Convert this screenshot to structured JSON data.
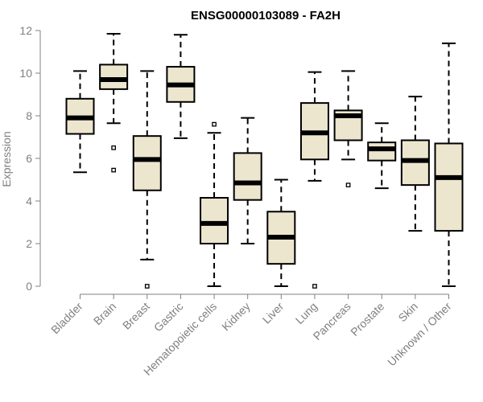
{
  "chart_data": {
    "type": "box",
    "title": "ENSG00000103089 - FA2H",
    "xlabel": "",
    "ylabel": "Expression",
    "ylim": [
      0,
      12
    ],
    "yticks": [
      0,
      2,
      4,
      6,
      8,
      10,
      12
    ],
    "box_color": "#ede6cf",
    "axis_color": "#808080",
    "categories": [
      "Bladder",
      "Brain",
      "Breast",
      "Gastric",
      "Hematopoietic cells",
      "Kidney",
      "Liver",
      "Lung",
      "Pancreas",
      "Prostate",
      "Skin",
      "Unknown / Other"
    ],
    "boxes": [
      {
        "category": "Bladder",
        "whisker_low": 5.35,
        "q1": 7.15,
        "median": 7.9,
        "q3": 8.8,
        "whisker_high": 10.1,
        "outliers": []
      },
      {
        "category": "Brain",
        "whisker_low": 7.65,
        "q1": 9.25,
        "median": 9.7,
        "q3": 10.4,
        "whisker_high": 11.85,
        "outliers": [
          6.5,
          5.45
        ]
      },
      {
        "category": "Breast",
        "whisker_low": 1.25,
        "q1": 4.5,
        "median": 5.95,
        "q3": 7.05,
        "whisker_high": 10.1,
        "outliers": [
          0.0
        ]
      },
      {
        "category": "Gastric",
        "whisker_low": 6.95,
        "q1": 8.65,
        "median": 9.45,
        "q3": 10.3,
        "whisker_high": 11.8,
        "outliers": []
      },
      {
        "category": "Hematopoietic cells",
        "whisker_low": 0.0,
        "q1": 2.0,
        "median": 2.95,
        "q3": 4.15,
        "whisker_high": 7.2,
        "outliers": [
          7.6
        ]
      },
      {
        "category": "Kidney",
        "whisker_low": 2.0,
        "q1": 4.05,
        "median": 4.85,
        "q3": 6.25,
        "whisker_high": 7.9,
        "outliers": []
      },
      {
        "category": "Liver",
        "whisker_low": 0.0,
        "q1": 1.05,
        "median": 2.3,
        "q3": 3.5,
        "whisker_high": 5.0,
        "outliers": []
      },
      {
        "category": "Lung",
        "whisker_low": 4.95,
        "q1": 5.95,
        "median": 7.2,
        "q3": 8.6,
        "whisker_high": 10.05,
        "outliers": [
          0.0
        ]
      },
      {
        "category": "Pancreas",
        "whisker_low": 5.95,
        "q1": 6.85,
        "median": 8.0,
        "q3": 8.25,
        "whisker_high": 10.1,
        "outliers": [
          4.75
        ]
      },
      {
        "category": "Prostate",
        "whisker_low": 4.6,
        "q1": 5.9,
        "median": 6.45,
        "q3": 6.75,
        "whisker_high": 7.65,
        "outliers": []
      },
      {
        "category": "Skin",
        "whisker_low": 2.6,
        "q1": 4.75,
        "median": 5.9,
        "q3": 6.85,
        "whisker_high": 8.9,
        "outliers": []
      },
      {
        "category": "Unknown / Other",
        "whisker_low": 0.0,
        "q1": 2.6,
        "median": 5.1,
        "q3": 6.7,
        "whisker_high": 11.4,
        "outliers": []
      }
    ]
  }
}
